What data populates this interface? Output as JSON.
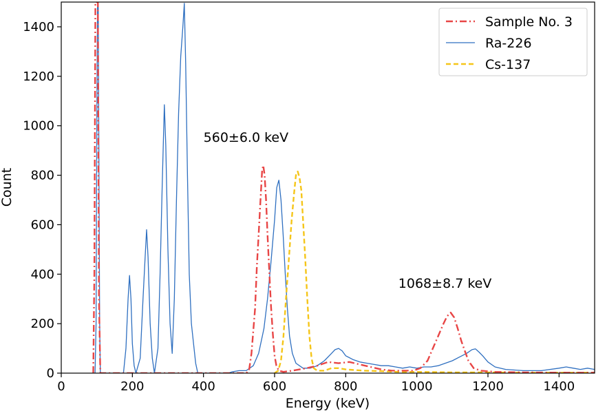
{
  "chart_data": {
    "type": "line",
    "xlabel": "Energy (keV)",
    "ylabel": "Count",
    "xlim": [
      0,
      1500
    ],
    "ylim": [
      0,
      1500
    ],
    "xticks": [
      0,
      200,
      400,
      600,
      800,
      1000,
      1200,
      1400
    ],
    "yticks": [
      0,
      200,
      400,
      600,
      800,
      1000,
      1200,
      1400
    ],
    "grid": false,
    "legend_position": "top-right",
    "annotations": [
      {
        "text": "560±6.0 keV",
        "x": 400,
        "y": 935
      },
      {
        "text": "1068±8.7 keV",
        "x": 948,
        "y": 345
      }
    ],
    "series": [
      {
        "name": "Sample No. 3",
        "color": "#e84545",
        "style": "dashdot",
        "points": [
          [
            90,
            0
          ],
          [
            93,
            400
          ],
          [
            96,
            1500
          ],
          [
            99,
            1500
          ],
          [
            103,
            1500
          ],
          [
            106,
            300
          ],
          [
            110,
            0
          ],
          [
            520,
            0
          ],
          [
            528,
            10
          ],
          [
            535,
            80
          ],
          [
            540,
            170
          ],
          [
            545,
            260
          ],
          [
            550,
            430
          ],
          [
            555,
            560
          ],
          [
            560,
            690
          ],
          [
            565,
            820
          ],
          [
            568,
            840
          ],
          [
            572,
            800
          ],
          [
            576,
            700
          ],
          [
            580,
            560
          ],
          [
            585,
            410
          ],
          [
            590,
            270
          ],
          [
            595,
            160
          ],
          [
            600,
            70
          ],
          [
            605,
            30
          ],
          [
            612,
            10
          ],
          [
            625,
            5
          ],
          [
            650,
            10
          ],
          [
            690,
            20
          ],
          [
            720,
            30
          ],
          [
            750,
            45
          ],
          [
            780,
            40
          ],
          [
            810,
            45
          ],
          [
            840,
            35
          ],
          [
            870,
            25
          ],
          [
            900,
            15
          ],
          [
            930,
            10
          ],
          [
            960,
            10
          ],
          [
            990,
            10
          ],
          [
            1010,
            20
          ],
          [
            1030,
            50
          ],
          [
            1045,
            100
          ],
          [
            1060,
            150
          ],
          [
            1075,
            200
          ],
          [
            1085,
            230
          ],
          [
            1095,
            245
          ],
          [
            1105,
            225
          ],
          [
            1115,
            180
          ],
          [
            1125,
            130
          ],
          [
            1135,
            90
          ],
          [
            1145,
            50
          ],
          [
            1160,
            20
          ],
          [
            1180,
            10
          ],
          [
            1220,
            5
          ],
          [
            1300,
            3
          ],
          [
            1400,
            2
          ],
          [
            1500,
            2
          ]
        ]
      },
      {
        "name": "Ra-226",
        "color": "#2e6fc0",
        "style": "solid",
        "points": [
          [
            95,
            0
          ],
          [
            98,
            200
          ],
          [
            100,
            1000
          ],
          [
            102,
            1500
          ],
          [
            104,
            1500
          ],
          [
            106,
            800
          ],
          [
            108,
            200
          ],
          [
            110,
            0
          ],
          [
            175,
            0
          ],
          [
            182,
            100
          ],
          [
            188,
            300
          ],
          [
            192,
            395
          ],
          [
            196,
            300
          ],
          [
            200,
            120
          ],
          [
            205,
            30
          ],
          [
            210,
            0
          ],
          [
            222,
            60
          ],
          [
            230,
            300
          ],
          [
            236,
            470
          ],
          [
            240,
            580
          ],
          [
            244,
            470
          ],
          [
            250,
            200
          ],
          [
            256,
            60
          ],
          [
            262,
            0
          ],
          [
            272,
            100
          ],
          [
            278,
            400
          ],
          [
            284,
            760
          ],
          [
            290,
            1085
          ],
          [
            294,
            920
          ],
          [
            300,
            500
          ],
          [
            306,
            200
          ],
          [
            312,
            80
          ],
          [
            318,
            300
          ],
          [
            324,
            700
          ],
          [
            330,
            1050
          ],
          [
            336,
            1280
          ],
          [
            342,
            1400
          ],
          [
            346,
            1495
          ],
          [
            350,
            1250
          ],
          [
            355,
            800
          ],
          [
            360,
            400
          ],
          [
            366,
            200
          ],
          [
            372,
            120
          ],
          [
            378,
            40
          ],
          [
            384,
            0
          ],
          [
            470,
            0
          ],
          [
            480,
            5
          ],
          [
            500,
            10
          ],
          [
            520,
            10
          ],
          [
            540,
            30
          ],
          [
            555,
            80
          ],
          [
            570,
            180
          ],
          [
            580,
            300
          ],
          [
            590,
            450
          ],
          [
            600,
            620
          ],
          [
            606,
            750
          ],
          [
            612,
            780
          ],
          [
            618,
            700
          ],
          [
            624,
            560
          ],
          [
            630,
            400
          ],
          [
            636,
            260
          ],
          [
            642,
            150
          ],
          [
            650,
            80
          ],
          [
            660,
            40
          ],
          [
            680,
            20
          ],
          [
            700,
            20
          ],
          [
            720,
            30
          ],
          [
            740,
            50
          ],
          [
            760,
            80
          ],
          [
            770,
            95
          ],
          [
            780,
            100
          ],
          [
            790,
            90
          ],
          [
            800,
            70
          ],
          [
            820,
            55
          ],
          [
            840,
            45
          ],
          [
            860,
            40
          ],
          [
            880,
            35
          ],
          [
            900,
            30
          ],
          [
            920,
            30
          ],
          [
            940,
            25
          ],
          [
            960,
            20
          ],
          [
            980,
            25
          ],
          [
            1000,
            20
          ],
          [
            1020,
            25
          ],
          [
            1040,
            25
          ],
          [
            1060,
            30
          ],
          [
            1080,
            40
          ],
          [
            1100,
            50
          ],
          [
            1120,
            65
          ],
          [
            1140,
            80
          ],
          [
            1155,
            95
          ],
          [
            1165,
            98
          ],
          [
            1175,
            85
          ],
          [
            1185,
            70
          ],
          [
            1200,
            45
          ],
          [
            1220,
            25
          ],
          [
            1250,
            15
          ],
          [
            1300,
            10
          ],
          [
            1350,
            10
          ],
          [
            1400,
            20
          ],
          [
            1420,
            25
          ],
          [
            1440,
            20
          ],
          [
            1460,
            15
          ],
          [
            1480,
            20
          ],
          [
            1500,
            15
          ]
        ]
      },
      {
        "name": "Cs-137",
        "color": "#f5c518",
        "style": "dashed",
        "points": [
          [
            600,
            0
          ],
          [
            610,
            10
          ],
          [
            618,
            50
          ],
          [
            625,
            150
          ],
          [
            632,
            300
          ],
          [
            640,
            460
          ],
          [
            648,
            620
          ],
          [
            655,
            730
          ],
          [
            660,
            800
          ],
          [
            665,
            815
          ],
          [
            670,
            790
          ],
          [
            675,
            740
          ],
          [
            680,
            620
          ],
          [
            686,
            470
          ],
          [
            692,
            300
          ],
          [
            698,
            150
          ],
          [
            704,
            60
          ],
          [
            710,
            20
          ],
          [
            720,
            10
          ],
          [
            740,
            10
          ],
          [
            760,
            20
          ],
          [
            780,
            20
          ],
          [
            800,
            15
          ],
          [
            850,
            10
          ],
          [
            900,
            8
          ],
          [
            950,
            5
          ],
          [
            1000,
            5
          ],
          [
            1100,
            3
          ],
          [
            1200,
            3
          ],
          [
            1300,
            2
          ],
          [
            1400,
            2
          ],
          [
            1500,
            2
          ]
        ]
      }
    ]
  }
}
